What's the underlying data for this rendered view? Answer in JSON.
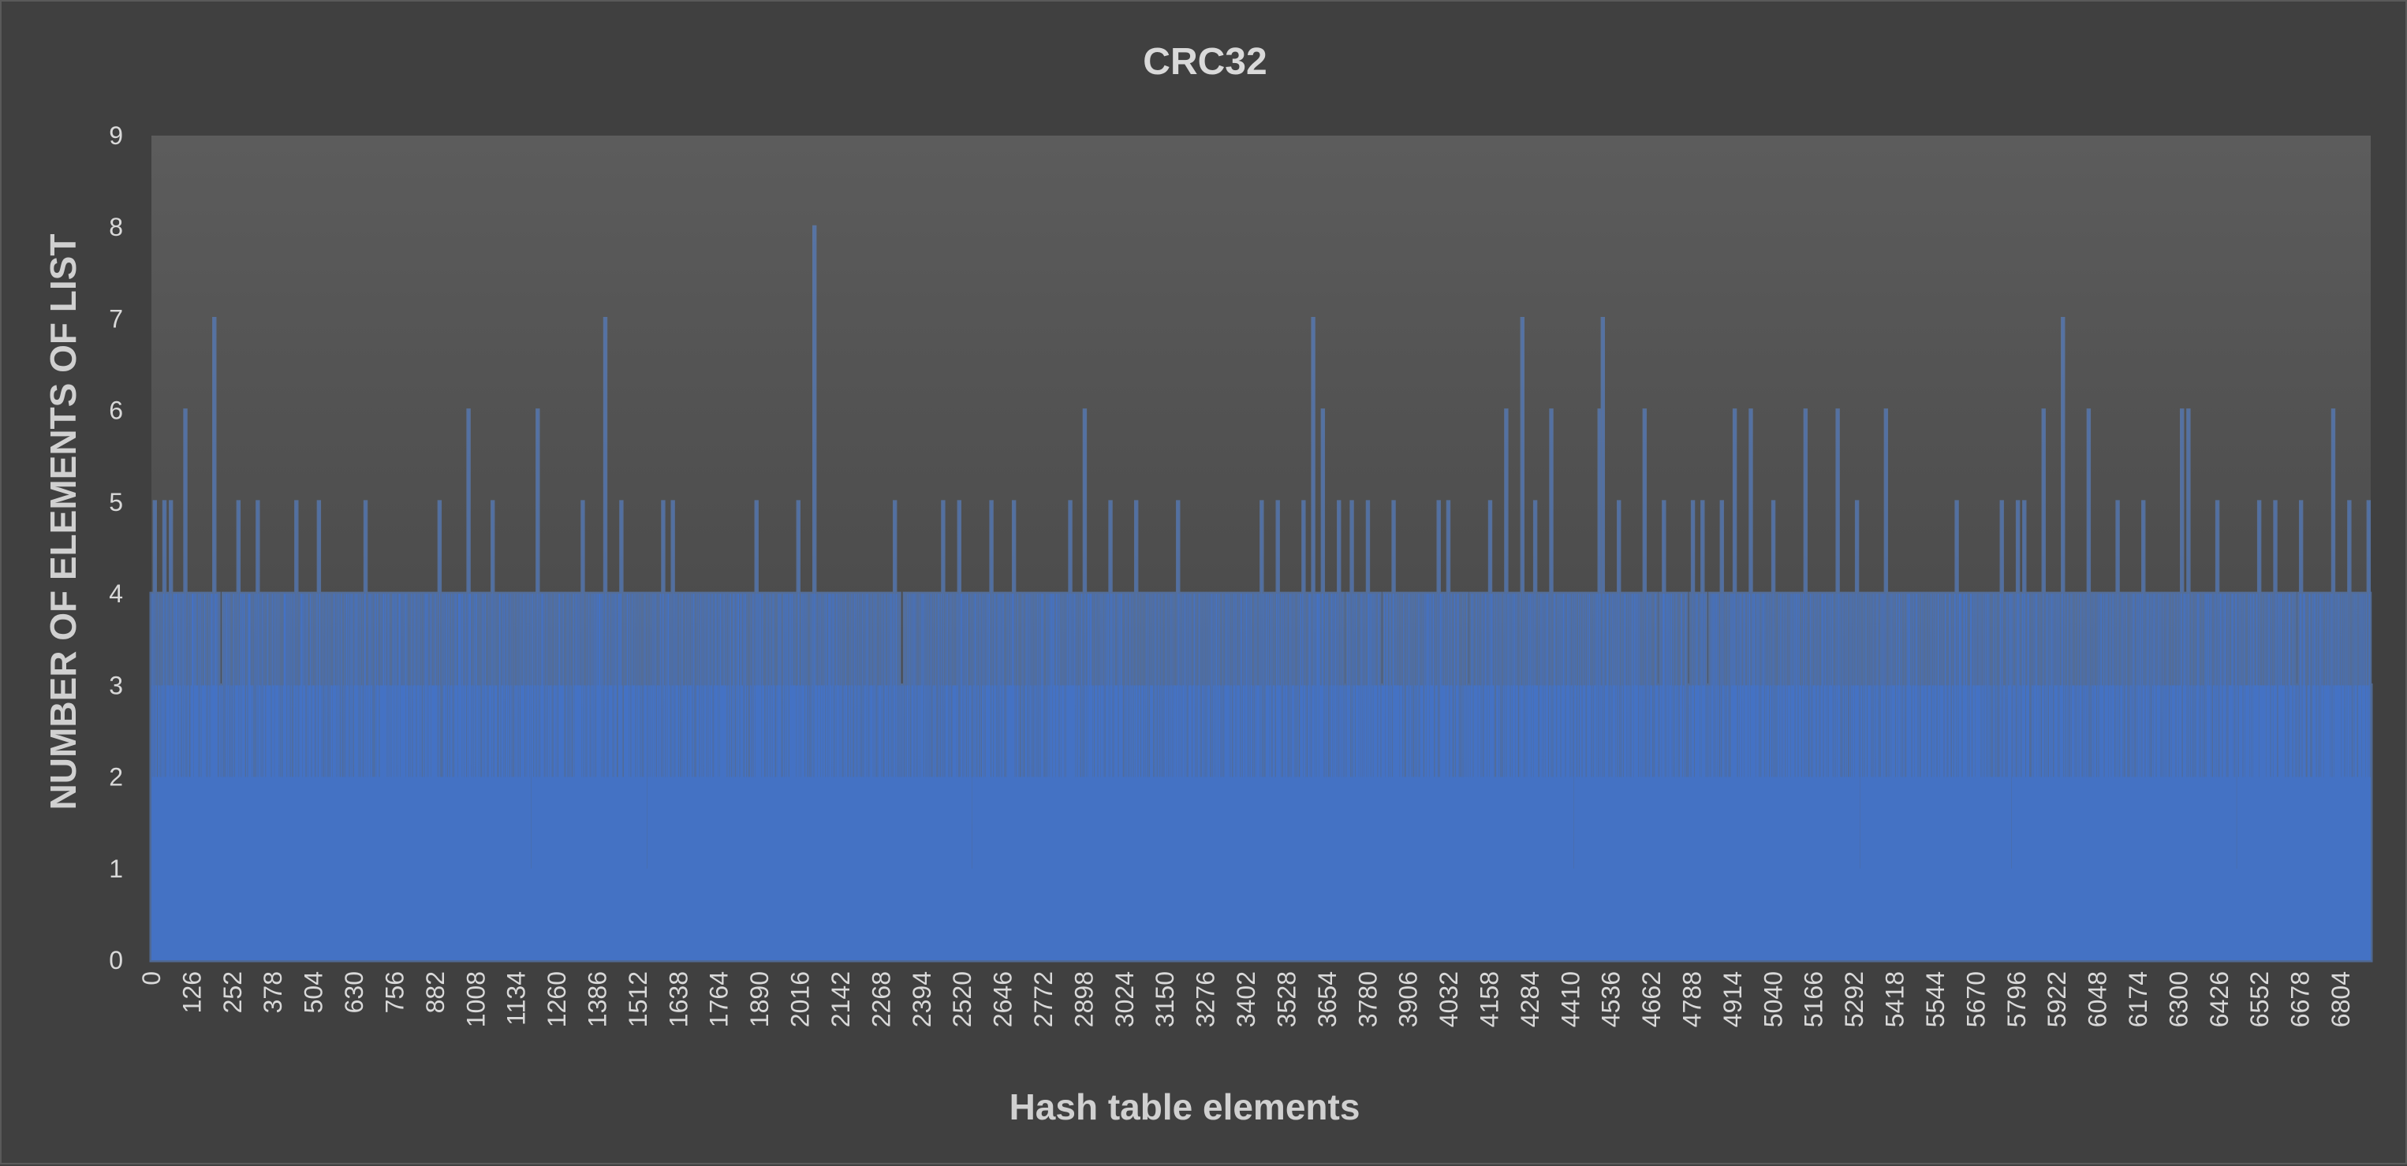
{
  "chart_data": {
    "type": "bar",
    "title": "CRC32",
    "xlabel": "Hash table elements",
    "ylabel": "NUMBER OF ELEMENTS OF LIST",
    "ylim": [
      0,
      9
    ],
    "yticks": [
      0,
      1,
      2,
      3,
      4,
      5,
      6,
      7,
      8,
      9
    ],
    "xlim": [
      0,
      6897
    ],
    "xticks": [
      0,
      126,
      252,
      378,
      504,
      630,
      756,
      882,
      1008,
      1134,
      1260,
      1386,
      1512,
      1638,
      1764,
      1890,
      2016,
      2142,
      2268,
      2394,
      2520,
      2646,
      2772,
      2898,
      3024,
      3150,
      3276,
      3402,
      3528,
      3654,
      3780,
      3906,
      4032,
      4158,
      4284,
      4410,
      4536,
      4662,
      4788,
      4914,
      5040,
      5166,
      5292,
      5418,
      5544,
      5670,
      5796,
      5922,
      6048,
      6174,
      6300,
      6426,
      6552,
      6678,
      6804
    ],
    "series_color": "#4472c4",
    "grid": false,
    "legend": "none",
    "peaks": [
      {
        "x": 10,
        "y": 5
      },
      {
        "x": 40,
        "y": 5
      },
      {
        "x": 60,
        "y": 5
      },
      {
        "x": 105,
        "y": 6
      },
      {
        "x": 195,
        "y": 7
      },
      {
        "x": 270,
        "y": 5
      },
      {
        "x": 330,
        "y": 5
      },
      {
        "x": 450,
        "y": 5
      },
      {
        "x": 520,
        "y": 5
      },
      {
        "x": 665,
        "y": 5
      },
      {
        "x": 895,
        "y": 5
      },
      {
        "x": 985,
        "y": 6
      },
      {
        "x": 1060,
        "y": 5
      },
      {
        "x": 1200,
        "y": 6
      },
      {
        "x": 1340,
        "y": 5
      },
      {
        "x": 1410,
        "y": 7
      },
      {
        "x": 1460,
        "y": 5
      },
      {
        "x": 1590,
        "y": 5
      },
      {
        "x": 1620,
        "y": 5
      },
      {
        "x": 1880,
        "y": 5
      },
      {
        "x": 2010,
        "y": 5
      },
      {
        "x": 2060,
        "y": 8
      },
      {
        "x": 2310,
        "y": 5
      },
      {
        "x": 2460,
        "y": 5
      },
      {
        "x": 2510,
        "y": 5
      },
      {
        "x": 2610,
        "y": 5
      },
      {
        "x": 2680,
        "y": 5
      },
      {
        "x": 2855,
        "y": 5
      },
      {
        "x": 2900,
        "y": 6
      },
      {
        "x": 2980,
        "y": 5
      },
      {
        "x": 3060,
        "y": 5
      },
      {
        "x": 3190,
        "y": 5
      },
      {
        "x": 3450,
        "y": 5
      },
      {
        "x": 3500,
        "y": 5
      },
      {
        "x": 3580,
        "y": 5
      },
      {
        "x": 3610,
        "y": 7
      },
      {
        "x": 3640,
        "y": 6
      },
      {
        "x": 3690,
        "y": 5
      },
      {
        "x": 3730,
        "y": 5
      },
      {
        "x": 3780,
        "y": 5
      },
      {
        "x": 3860,
        "y": 5
      },
      {
        "x": 4000,
        "y": 5
      },
      {
        "x": 4030,
        "y": 5
      },
      {
        "x": 4160,
        "y": 5
      },
      {
        "x": 4210,
        "y": 6
      },
      {
        "x": 4260,
        "y": 7
      },
      {
        "x": 4300,
        "y": 5
      },
      {
        "x": 4350,
        "y": 6
      },
      {
        "x": 4500,
        "y": 6
      },
      {
        "x": 4510,
        "y": 7
      },
      {
        "x": 4560,
        "y": 5
      },
      {
        "x": 4640,
        "y": 6
      },
      {
        "x": 4700,
        "y": 5
      },
      {
        "x": 4790,
        "y": 5
      },
      {
        "x": 4820,
        "y": 5
      },
      {
        "x": 4880,
        "y": 5
      },
      {
        "x": 4920,
        "y": 6
      },
      {
        "x": 4970,
        "y": 6
      },
      {
        "x": 5040,
        "y": 5
      },
      {
        "x": 5140,
        "y": 6
      },
      {
        "x": 5240,
        "y": 6
      },
      {
        "x": 5300,
        "y": 5
      },
      {
        "x": 5390,
        "y": 6
      },
      {
        "x": 5610,
        "y": 5
      },
      {
        "x": 5750,
        "y": 5
      },
      {
        "x": 5800,
        "y": 5
      },
      {
        "x": 5820,
        "y": 5
      },
      {
        "x": 5880,
        "y": 6
      },
      {
        "x": 5940,
        "y": 7
      },
      {
        "x": 6020,
        "y": 6
      },
      {
        "x": 6110,
        "y": 5
      },
      {
        "x": 6190,
        "y": 5
      },
      {
        "x": 6310,
        "y": 6
      },
      {
        "x": 6330,
        "y": 6
      },
      {
        "x": 6420,
        "y": 5
      },
      {
        "x": 6550,
        "y": 5
      },
      {
        "x": 6600,
        "y": 5
      },
      {
        "x": 6680,
        "y": 5
      },
      {
        "x": 6780,
        "y": 6
      },
      {
        "x": 6830,
        "y": 5
      },
      {
        "x": 6890,
        "y": 5
      }
    ],
    "dips": [
      {
        "x": 1180,
        "y": 1
      },
      {
        "x": 1540,
        "y": 1
      },
      {
        "x": 2550,
        "y": 1
      },
      {
        "x": 4420,
        "y": 1
      },
      {
        "x": 5310,
        "y": 1
      },
      {
        "x": 5780,
        "y": 1
      },
      {
        "x": 6480,
        "y": 1
      }
    ]
  }
}
